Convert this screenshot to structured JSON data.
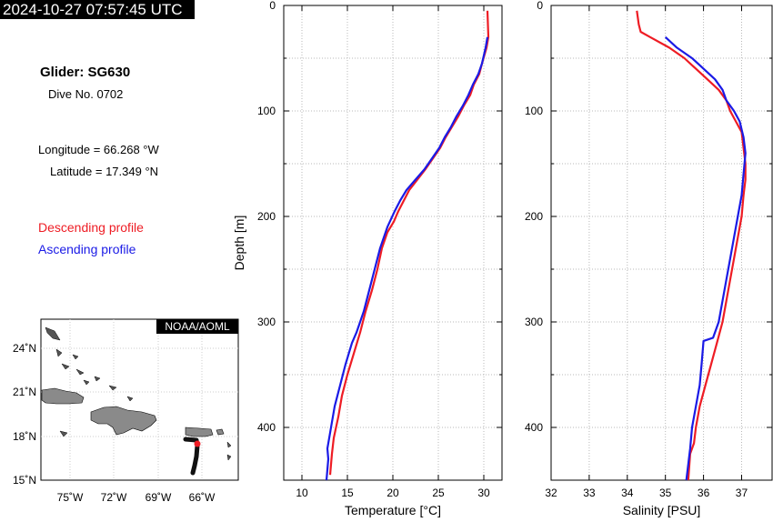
{
  "timestamp": "2024-10-27 07:57:45 UTC",
  "info": {
    "glider": "Glider: SG630",
    "dive": "Dive No. 0702",
    "longitude": "Longitude = 66.268 °W",
    "latitude": "Latitude = 17.349 °N"
  },
  "legend": {
    "descending": "Descending profile",
    "ascending": "Ascending profile"
  },
  "colors": {
    "descending": "#ee1c24",
    "ascending": "#1a1ae6",
    "map_land": "#8a8a8a",
    "track": "#000000"
  },
  "map": {
    "credit": "NOAA/AOML",
    "lat_ticks": [
      "24˚N",
      "21˚N",
      "18˚N",
      "15˚N"
    ],
    "lon_ticks": [
      "75˚W",
      "72˚W",
      "69˚W",
      "66˚W"
    ]
  },
  "chart_data": [
    {
      "type": "line",
      "xlabel": "Temperature [°C]",
      "ylabel": "Depth [m]",
      "xlim": [
        8,
        32
      ],
      "ylim": [
        450,
        0
      ],
      "xticks": [
        10,
        15,
        20,
        25,
        30
      ],
      "yticks": [
        0,
        100,
        200,
        300,
        400
      ],
      "grid": true,
      "series": [
        {
          "name": "Descending profile",
          "x": [
            30.4,
            30.5,
            30.3,
            29.8,
            29.5,
            28.9,
            28.5,
            27.8,
            27.2,
            26.5,
            25.8,
            25.2,
            24.4,
            23.6,
            22.7,
            21.8,
            21.2,
            20.6,
            20.1,
            19.4,
            18.8,
            18.3,
            17.7,
            17.0,
            16.4,
            15.7,
            15.0,
            14.4,
            14.0,
            13.5,
            13.3,
            13.1
          ],
          "y": [
            5,
            30,
            40,
            55,
            65,
            75,
            85,
            95,
            105,
            115,
            125,
            135,
            145,
            155,
            165,
            175,
            185,
            195,
            205,
            215,
            230,
            250,
            270,
            290,
            310,
            330,
            350,
            370,
            390,
            410,
            425,
            445
          ]
        },
        {
          "name": "Ascending profile",
          "x": [
            30.4,
            30.2,
            29.8,
            29.4,
            28.8,
            28.3,
            27.7,
            27.0,
            26.4,
            25.7,
            25.1,
            24.3,
            23.5,
            22.5,
            21.5,
            20.8,
            20.2,
            19.4,
            18.6,
            18.0,
            17.4,
            16.8,
            16.0,
            15.5,
            14.8,
            14.2,
            13.6,
            13.2,
            12.8,
            12.9,
            12.7
          ],
          "y": [
            30,
            40,
            55,
            65,
            75,
            85,
            95,
            105,
            115,
            125,
            135,
            145,
            155,
            165,
            175,
            185,
            195,
            210,
            230,
            250,
            270,
            290,
            310,
            320,
            340,
            360,
            380,
            400,
            420,
            430,
            450
          ]
        }
      ]
    },
    {
      "type": "line",
      "xlabel": "Salinity [PSU]",
      "ylabel": "",
      "xlim": [
        32,
        37.8
      ],
      "ylim": [
        450,
        0
      ],
      "xticks": [
        32,
        33,
        34,
        35,
        36,
        37
      ],
      "yticks": [
        0,
        100,
        200,
        300,
        400
      ],
      "grid": true,
      "series": [
        {
          "name": "Descending profile",
          "x": [
            34.25,
            34.3,
            34.35,
            34.6,
            35.1,
            35.5,
            35.8,
            36.1,
            36.4,
            36.6,
            36.7,
            36.85,
            37.0,
            37.05,
            37.1,
            37.1,
            37.05,
            37.0,
            36.9,
            36.8,
            36.7,
            36.6,
            36.5,
            36.35,
            36.2,
            36.05,
            35.9,
            35.8,
            35.75,
            35.65,
            35.6
          ],
          "y": [
            5,
            18,
            25,
            30,
            40,
            50,
            60,
            70,
            80,
            90,
            100,
            110,
            120,
            135,
            150,
            165,
            180,
            200,
            220,
            240,
            260,
            280,
            300,
            320,
            340,
            360,
            380,
            400,
            415,
            425,
            450
          ]
        },
        {
          "name": "Ascending profile",
          "x": [
            35.0,
            35.3,
            35.7,
            36.0,
            36.3,
            36.5,
            36.6,
            36.8,
            36.95,
            37.05,
            37.1,
            37.05,
            37.0,
            36.9,
            36.8,
            36.7,
            36.6,
            36.5,
            36.4,
            36.25,
            36.0,
            35.95,
            35.9,
            35.8,
            35.7,
            35.65,
            35.6,
            35.55
          ],
          "y": [
            30,
            40,
            50,
            60,
            70,
            80,
            90,
            100,
            110,
            125,
            140,
            160,
            180,
            200,
            220,
            240,
            260,
            280,
            300,
            315,
            318,
            340,
            360,
            380,
            400,
            420,
            435,
            450
          ]
        }
      ]
    }
  ]
}
